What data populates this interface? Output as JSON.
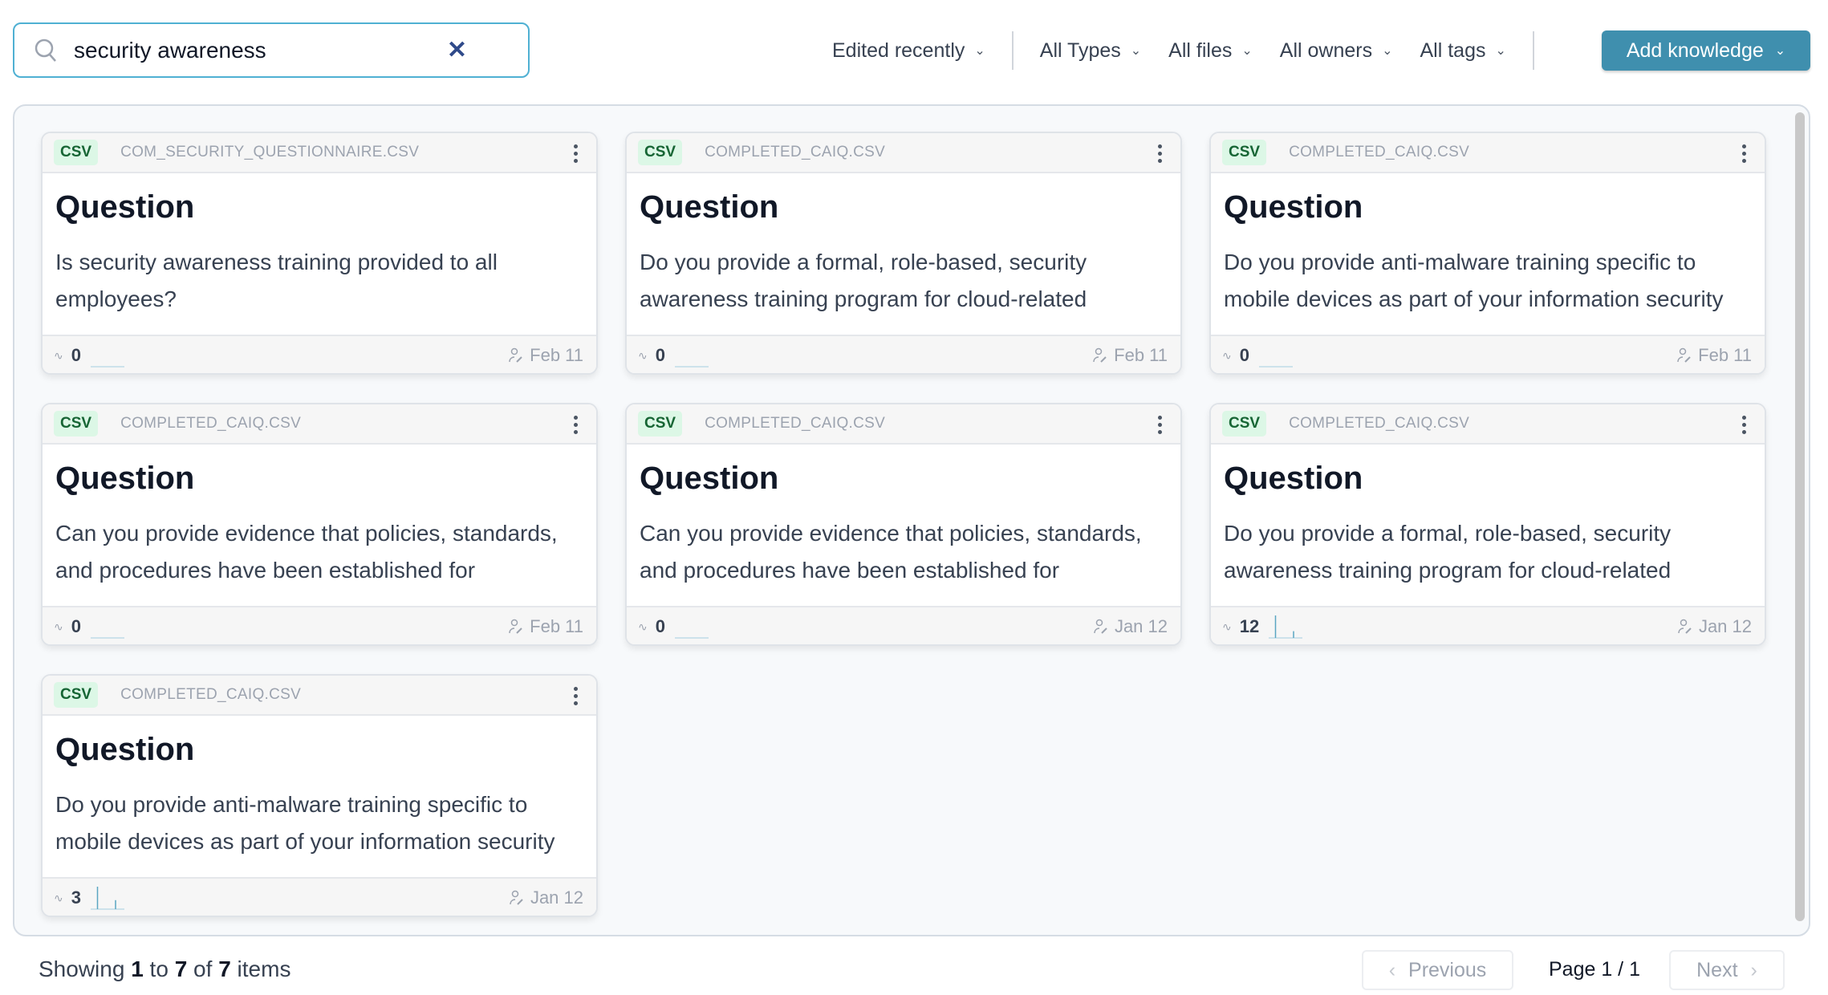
{
  "search": {
    "value": "security awareness",
    "clear_icon": "close-icon"
  },
  "filters": {
    "sort": "Edited recently",
    "types": "All Types",
    "files": "All files",
    "owners": "All owners",
    "tags": "All tags"
  },
  "add_button": "Add knowledge",
  "cards": [
    {
      "badge": "CSV",
      "file": "COM_SECURITY_QUESTIONNAIRE.CSV",
      "title": "Question",
      "text": "Is security awareness training provided to all employees?",
      "count": "0",
      "activity": [],
      "date": "Feb 11"
    },
    {
      "badge": "CSV",
      "file": "COMPLETED_CAIQ.CSV",
      "title": "Question",
      "text": "Do you provide a formal, role-based, security awareness training program for cloud-related",
      "count": "0",
      "activity": [],
      "date": "Feb 11"
    },
    {
      "badge": "CSV",
      "file": "COMPLETED_CAIQ.CSV",
      "title": "Question",
      "text": "Do you provide anti-malware training specific to mobile devices as part of your information security",
      "count": "0",
      "activity": [],
      "date": "Feb 11"
    },
    {
      "badge": "CSV",
      "file": "COMPLETED_CAIQ.CSV",
      "title": "Question",
      "text": "Can you provide evidence that policies, standards, and procedures have been established for",
      "count": "0",
      "activity": [],
      "date": "Feb 11"
    },
    {
      "badge": "CSV",
      "file": "COMPLETED_CAIQ.CSV",
      "title": "Question",
      "text": "Can you provide evidence that policies, standards, and procedures have been established for",
      "count": "0",
      "activity": [],
      "date": "Jan 12"
    },
    {
      "badge": "CSV",
      "file": "COMPLETED_CAIQ.CSV",
      "title": "Question",
      "text": "Do you provide a formal, role-based, security awareness training program for cloud-related",
      "count": "12",
      "activity": [
        0,
        1,
        0,
        0,
        0,
        0,
        0.3,
        0,
        0
      ],
      "date": "Jan 12"
    },
    {
      "badge": "CSV",
      "file": "COMPLETED_CAIQ.CSV",
      "title": "Question",
      "text": "Do you provide anti-malware training specific to mobile devices as part of your information security",
      "count": "3",
      "activity": [
        0,
        1,
        0,
        0,
        0,
        0,
        0.4,
        0,
        0
      ],
      "date": "Jan 12"
    }
  ],
  "footer": {
    "showing_prefix": "Showing",
    "from": "1",
    "to_label": "to",
    "to": "7",
    "of_label": "of",
    "total": "7",
    "suffix": "items"
  },
  "pagination": {
    "previous": "Previous",
    "page": "Page 1 / 1",
    "next": "Next"
  },
  "colors": {
    "accent": "#3f8fae",
    "badge_bg": "#dcf7e6",
    "badge_text": "#166534",
    "sparkline": "#5aa6c2"
  }
}
